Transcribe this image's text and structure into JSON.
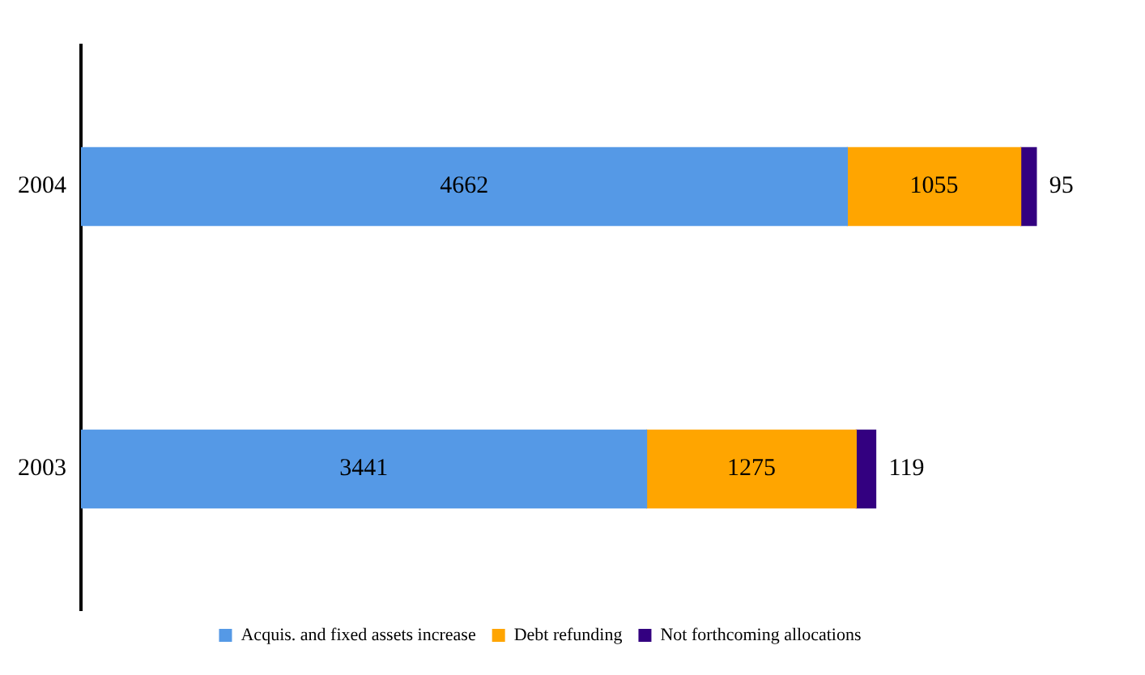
{
  "chart_data": {
    "type": "bar",
    "orientation": "horizontal",
    "stacked": true,
    "categories": [
      "2004",
      "2003"
    ],
    "series": [
      {
        "name": "Acquis. and fixed assets increase",
        "color": "#5599e6",
        "values": [
          4662,
          3441
        ]
      },
      {
        "name": "Debt refunding",
        "color": "#ffa500",
        "values": [
          1055,
          1275
        ]
      },
      {
        "name": "Not forthcoming allocations",
        "color": "#330080",
        "values": [
          95,
          119
        ]
      }
    ],
    "data_labels": true,
    "legend": "bottom",
    "grid": false,
    "tick_labels": "y"
  }
}
